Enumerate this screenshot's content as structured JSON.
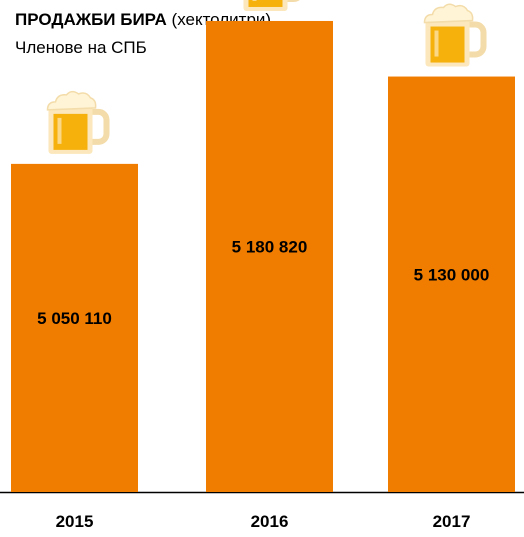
{
  "header": {
    "title_bold": "ПРОДАЖБИ БИРА",
    "title_rest": " (хектолитри)",
    "subtitle": "Членове на СПБ"
  },
  "chart_data": {
    "type": "bar",
    "categories": [
      "2015",
      "2016",
      "2017"
    ],
    "values": [
      5050110,
      5180820,
      5130000
    ],
    "value_labels": [
      "5 050 110",
      "5 180 820",
      "5 130 000"
    ],
    "title": "ПРОДАЖБИ БИРА (хектолитри)",
    "subtitle": "Членове на СПБ",
    "xlabel": "",
    "ylabel": "",
    "ylim": [
      4750000,
      5200000
    ],
    "grid": false,
    "legend": "none",
    "bar_color": "#f07c00",
    "icon": "beer-mug-icon"
  }
}
